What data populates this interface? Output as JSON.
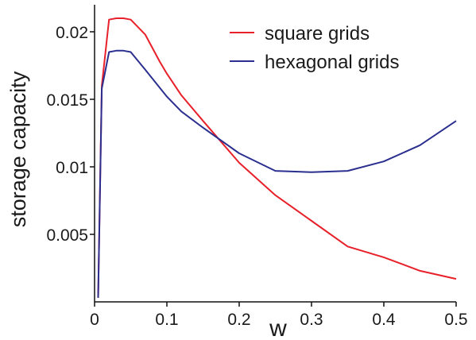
{
  "chart_data": {
    "type": "line",
    "xlabel": "w",
    "ylabel": "storage capacity",
    "xlim": [
      0,
      0.5
    ],
    "ylim": [
      0,
      0.022
    ],
    "x_ticks": [
      "0",
      "0.1",
      "0.2",
      "0.3",
      "0.4",
      "0.5"
    ],
    "x_tick_values": [
      0,
      0.1,
      0.2,
      0.3,
      0.4,
      0.5
    ],
    "y_ticks": [
      "0.005",
      "0.01",
      "0.015",
      "0.02"
    ],
    "y_tick_values": [
      0.005,
      0.01,
      0.015,
      0.02
    ],
    "grid": false,
    "legend_position": "top-right",
    "series": [
      {
        "name": "square grids",
        "color": "#e8202a",
        "x": [
          0.005,
          0.01,
          0.02,
          0.03,
          0.04,
          0.05,
          0.07,
          0.09,
          0.1,
          0.12,
          0.15,
          0.2,
          0.25,
          0.3,
          0.35,
          0.4,
          0.45,
          0.5
        ],
        "y": [
          0.0003,
          0.016,
          0.0209,
          0.021,
          0.021,
          0.0209,
          0.0198,
          0.0178,
          0.0169,
          0.0153,
          0.0134,
          0.0103,
          0.0079,
          0.006,
          0.0041,
          0.0033,
          0.0023,
          0.0017
        ]
      },
      {
        "name": "hexagonal grids",
        "color": "#2b2f8f",
        "x": [
          0.005,
          0.01,
          0.02,
          0.03,
          0.04,
          0.05,
          0.07,
          0.1,
          0.12,
          0.15,
          0.2,
          0.25,
          0.3,
          0.35,
          0.4,
          0.45,
          0.5
        ],
        "y": [
          0.0003,
          0.0158,
          0.0185,
          0.0186,
          0.0186,
          0.0185,
          0.0172,
          0.0152,
          0.0141,
          0.0129,
          0.011,
          0.0097,
          0.0096,
          0.0097,
          0.0104,
          0.0116,
          0.0134
        ]
      }
    ]
  }
}
